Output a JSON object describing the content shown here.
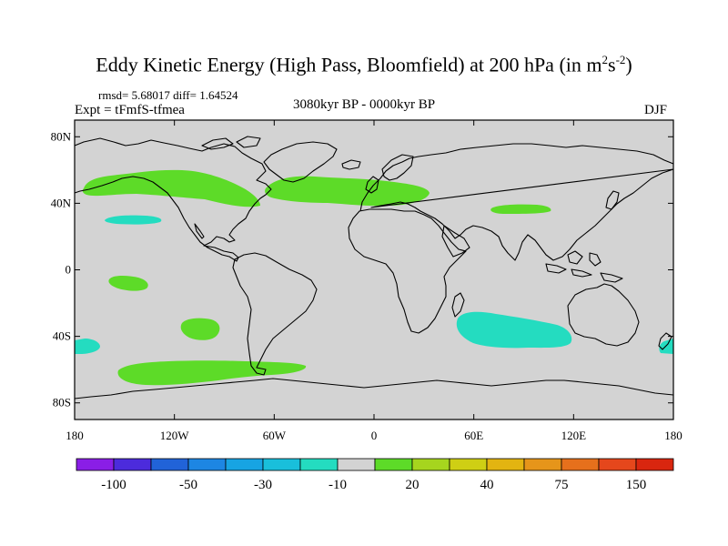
{
  "title": "Eddy Kinetic Energy (High Pass, Bloomfield) at 200 hPa (in m",
  "title_unit_sup1": "2",
  "title_unit_s": "s",
  "title_unit_sup2": "-2",
  "title_close": ")",
  "stats": "rmsd= 5.68017 diff= 1.64524",
  "expt": "Expt = tFmfS-tfmea",
  "period": "3080kyr BP - 0000kyr BP",
  "season": "DJF",
  "colors": {
    "land_bg": "#d3d3d3",
    "green": "#5ddb28",
    "cyan": "#24dcc0",
    "coast": "#000000"
  },
  "map": {
    "lat_ticks": [
      {
        "lat": 80,
        "label": "80N"
      },
      {
        "lat": 40,
        "label": "40N"
      },
      {
        "lat": 0,
        "label": "0"
      },
      {
        "lat": -40,
        "label": "40S"
      },
      {
        "lat": -80,
        "label": "80S"
      }
    ],
    "lon_ticks": [
      {
        "lon": -180,
        "label": "180"
      },
      {
        "lon": -120,
        "label": "120W"
      },
      {
        "lon": -60,
        "label": "60W"
      },
      {
        "lon": 0,
        "label": "0"
      },
      {
        "lon": 60,
        "label": "60E"
      },
      {
        "lon": 120,
        "label": "120E"
      },
      {
        "lon": 180,
        "label": "180"
      }
    ],
    "anomaly_regions": [
      {
        "name": "n-pacific-positive",
        "sign": "positive",
        "lon": -125,
        "lat": 47
      },
      {
        "name": "n-atlantic-positive",
        "sign": "positive",
        "lon": -20,
        "lat": 48
      },
      {
        "name": "central-asia-positive",
        "sign": "positive",
        "lon": 88,
        "lat": 37
      },
      {
        "name": "ne-pacific-negative",
        "sign": "negative",
        "lon": -147,
        "lat": 30
      },
      {
        "name": "tropical-pacific-positive",
        "sign": "positive",
        "lon": -143,
        "lat": -7
      },
      {
        "name": "s-pacific-positive",
        "sign": "positive",
        "lon": -107,
        "lat": -35
      },
      {
        "name": "southern-ocean-positive",
        "sign": "positive",
        "lon": -95,
        "lat": -62
      },
      {
        "name": "s-indian-ocean-negative",
        "sign": "negative",
        "lon": 80,
        "lat": -37
      },
      {
        "name": "sw-pacific-negative",
        "sign": "negative",
        "lon": -170,
        "lat": -46
      },
      {
        "name": "tasman-negative",
        "sign": "negative",
        "lon": 177,
        "lat": -45
      }
    ]
  },
  "colorbar": {
    "colors": [
      "#8a1ee6",
      "#4c2bdc",
      "#2163d8",
      "#1d86e3",
      "#17a4e3",
      "#19bfdb",
      "#24dcc0",
      "#d3d3d3",
      "#5ddb28",
      "#a6d51e",
      "#cfcf14",
      "#e3b411",
      "#e6951a",
      "#e6701c",
      "#e5471c",
      "#d9260f"
    ],
    "labels": [
      {
        "boundary": 1,
        "text": "-100"
      },
      {
        "boundary": 3,
        "text": "-50"
      },
      {
        "boundary": 5,
        "text": "-30"
      },
      {
        "boundary": 7,
        "text": "-10"
      },
      {
        "boundary": 9,
        "text": "20"
      },
      {
        "boundary": 11,
        "text": "40"
      },
      {
        "boundary": 13,
        "text": "75"
      },
      {
        "boundary": 15,
        "text": "150"
      }
    ]
  }
}
